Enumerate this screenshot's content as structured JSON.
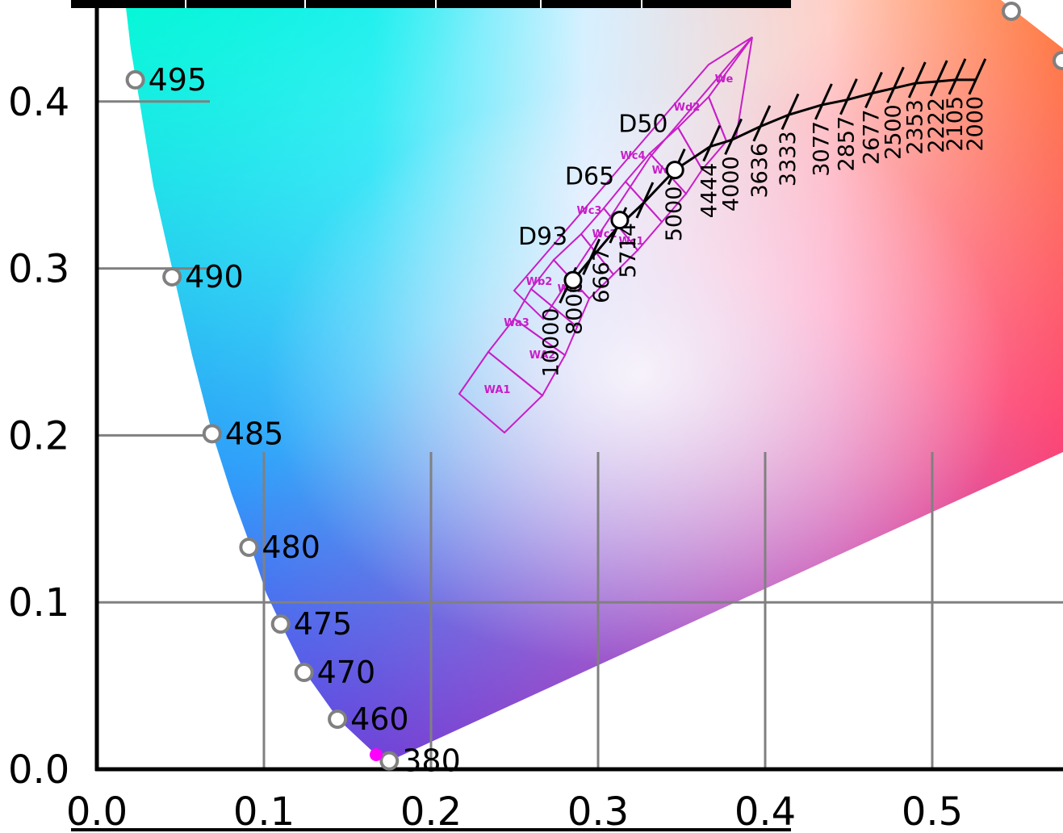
{
  "chart_data": {
    "type": "scatter",
    "title": "",
    "xlabel": "",
    "ylabel": "",
    "xlim": [
      0.0,
      0.575
    ],
    "ylim": [
      0.0,
      0.45
    ],
    "x_ticks": [
      "0.0",
      "0.1",
      "0.2",
      "0.3",
      "0.4",
      "0.5"
    ],
    "y_ticks": [
      "0.0",
      "0.1",
      "0.2",
      "0.3",
      "0.4"
    ],
    "grid": true,
    "spectral_locus": [
      {
        "label": "380",
        "x": 0.175,
        "y": 0.005
      },
      {
        "label": "460",
        "x": 0.144,
        "y": 0.03
      },
      {
        "label": "470",
        "x": 0.124,
        "y": 0.058
      },
      {
        "label": "475",
        "x": 0.11,
        "y": 0.087
      },
      {
        "label": "480",
        "x": 0.091,
        "y": 0.133
      },
      {
        "label": "485",
        "x": 0.069,
        "y": 0.201
      },
      {
        "label": "490",
        "x": 0.045,
        "y": 0.295
      },
      {
        "label": "495",
        "x": 0.023,
        "y": 0.413
      }
    ],
    "white_points": [
      {
        "label": "D93",
        "x": 0.285,
        "y": 0.293
      },
      {
        "label": "D65",
        "x": 0.313,
        "y": 0.329
      },
      {
        "label": "D50",
        "x": 0.346,
        "y": 0.359
      }
    ],
    "planckian_cct_labels": [
      "10000",
      "8000",
      "6667",
      "5714",
      "5000",
      "4444",
      "4000",
      "3636",
      "3333",
      "3077",
      "2857",
      "2677",
      "2500",
      "2353",
      "2222",
      "2105",
      "2000"
    ],
    "planckian_locus": [
      {
        "x": 0.281,
        "y": 0.288
      },
      {
        "x": 0.295,
        "y": 0.305
      },
      {
        "x": 0.311,
        "y": 0.324
      },
      {
        "x": 0.327,
        "y": 0.339
      },
      {
        "x": 0.346,
        "y": 0.359
      },
      {
        "x": 0.367,
        "y": 0.373
      },
      {
        "x": 0.38,
        "y": 0.377
      },
      {
        "x": 0.397,
        "y": 0.385
      },
      {
        "x": 0.414,
        "y": 0.392
      },
      {
        "x": 0.434,
        "y": 0.398
      },
      {
        "x": 0.449,
        "y": 0.401
      },
      {
        "x": 0.464,
        "y": 0.405
      },
      {
        "x": 0.477,
        "y": 0.408
      },
      {
        "x": 0.49,
        "y": 0.411
      },
      {
        "x": 0.503,
        "y": 0.412
      },
      {
        "x": 0.514,
        "y": 0.413
      },
      {
        "x": 0.526,
        "y": 0.413
      }
    ],
    "zone_labels": [
      "WA1",
      "WA2",
      "Wa3",
      "Wb2",
      "Wb1",
      "Wc1",
      "Wc2",
      "Wc3",
      "Wc4",
      "Wd1",
      "Wd2",
      "We"
    ],
    "colors": {
      "locus_marker_stroke": "#808080",
      "zone_stroke": "#c81ec8",
      "grid": "#808080",
      "purple_marker": "#ff00ff"
    }
  }
}
